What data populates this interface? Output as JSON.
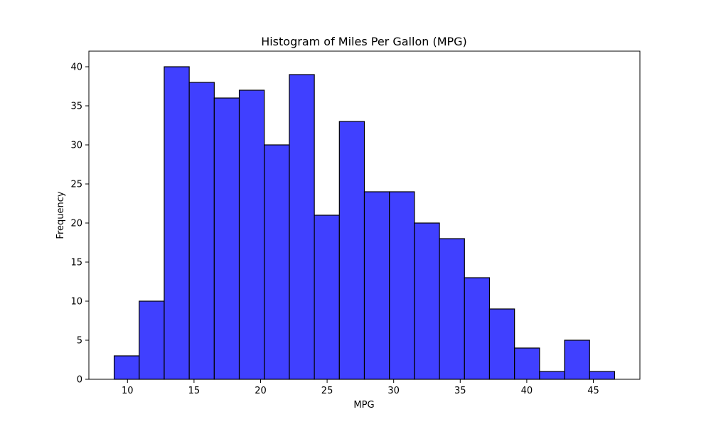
{
  "chart_data": {
    "type": "bar",
    "title": "Histogram of Miles Per Gallon (MPG)",
    "xlabel": "MPG",
    "ylabel": "Frequency",
    "xlim": [
      7.1,
      48.5
    ],
    "ylim": [
      0,
      42
    ],
    "bin_edges": [
      9.0,
      10.88,
      12.76,
      14.64,
      16.52,
      18.4,
      20.28,
      22.16,
      24.04,
      25.92,
      27.8,
      29.68,
      31.56,
      33.44,
      35.32,
      37.2,
      39.08,
      40.96,
      42.84,
      44.72,
      46.6
    ],
    "counts": [
      3,
      10,
      40,
      38,
      36,
      37,
      30,
      39,
      21,
      33,
      24,
      24,
      20,
      18,
      13,
      9,
      4,
      1,
      5,
      1
    ],
    "x_ticks": [
      10,
      15,
      20,
      25,
      30,
      35,
      40,
      45
    ],
    "y_ticks": [
      0,
      5,
      10,
      15,
      20,
      25,
      30,
      35,
      40
    ],
    "bar_color": "#4040ff",
    "edge_color": "#000000",
    "grid": false
  }
}
